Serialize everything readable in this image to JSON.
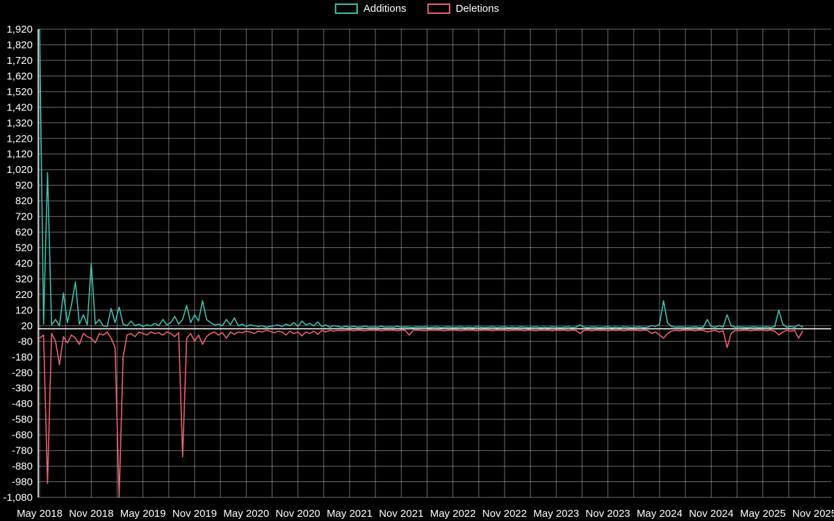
{
  "page": {
    "background": "#000000"
  },
  "legend": {
    "items": [
      {
        "id": "additions",
        "label": "Additions",
        "color": "#3fc1b2"
      },
      {
        "id": "deletions",
        "label": "Deletions",
        "color": "#f2606f"
      }
    ]
  },
  "chart_data": {
    "type": "line",
    "title": "",
    "xlabel": "",
    "ylabel": "",
    "grid": true,
    "legend_position": "top-center",
    "background_color": "#000000",
    "text_color": "#ffffff",
    "grid_color": "#ffffff",
    "y_max": 1920,
    "y_min": -1080,
    "y_grid_step": 100,
    "x_domain_max": 195,
    "x_tick_step": 13,
    "x_minor_grid_step": 6.5,
    "y_tick_labels": [
      "1,920",
      "1,820",
      "1,720",
      "1,620",
      "1,520",
      "1,420",
      "1,320",
      "1,220",
      "1,120",
      "1,020",
      "920",
      "820",
      "720",
      "620",
      "520",
      "420",
      "320",
      "220",
      "120",
      "20",
      "-80",
      "-180",
      "-280",
      "-380",
      "-480",
      "-580",
      "-680",
      "-780",
      "-880",
      "-980",
      "-1,080"
    ],
    "x_tick_labels": [
      "May 2018",
      "Nov 2018",
      "May 2019",
      "Nov 2019",
      "May 2020",
      "Nov 2020",
      "May 2021",
      "Nov 2021",
      "May 2022",
      "Nov 2022",
      "May 2023",
      "Nov 2023",
      "May 2024",
      "Nov 2024",
      "May 2025",
      "Nov 2025"
    ],
    "series": [
      {
        "name": "Additions",
        "color": "#3fc1b2",
        "values": [
          1920,
          30,
          1000,
          25,
          60,
          20,
          230,
          40,
          150,
          300,
          30,
          90,
          25,
          420,
          30,
          60,
          20,
          15,
          130,
          40,
          140,
          30,
          20,
          50,
          20,
          30,
          15,
          25,
          20,
          35,
          20,
          60,
          25,
          40,
          80,
          30,
          60,
          150,
          40,
          90,
          50,
          180,
          60,
          40,
          25,
          30,
          20,
          60,
          25,
          70,
          20,
          30,
          15,
          25,
          20,
          15,
          20,
          10,
          15,
          20,
          25,
          15,
          30,
          20,
          40,
          15,
          50,
          25,
          35,
          20,
          45,
          15,
          25,
          10,
          20,
          15,
          10,
          15,
          10,
          15,
          10,
          12,
          15,
          10,
          12,
          10,
          15,
          10,
          12,
          10,
          15,
          10,
          12,
          10,
          8,
          12,
          10,
          12,
          8,
          10,
          12,
          8,
          10,
          12,
          8,
          10,
          12,
          8,
          10,
          8,
          12,
          10,
          8,
          10,
          12,
          8,
          10,
          12,
          8,
          10,
          8,
          12,
          10,
          8,
          10,
          12,
          8,
          10,
          8,
          12,
          10,
          8,
          10,
          12,
          8,
          10,
          25,
          10,
          8,
          12,
          10,
          8,
          10,
          12,
          8,
          10,
          8,
          12,
          10,
          8,
          10,
          12,
          8,
          10,
          20,
          15,
          30,
          180,
          40,
          15,
          10,
          12,
          10,
          8,
          10,
          12,
          8,
          10,
          60,
          15,
          10,
          20,
          12,
          90,
          20,
          10,
          12,
          10,
          8,
          10,
          12,
          8,
          10,
          12,
          8,
          15,
          120,
          30,
          10,
          15,
          10,
          25,
          12
        ]
      },
      {
        "name": "Deletions",
        "color": "#f2606f",
        "values": [
          -60,
          -40,
          -990,
          -30,
          -80,
          -230,
          -50,
          -90,
          -40,
          -60,
          -100,
          -30,
          -50,
          -60,
          -90,
          -30,
          -40,
          -20,
          -60,
          -120,
          -1080,
          -180,
          -40,
          -30,
          -50,
          -20,
          -30,
          -40,
          -20,
          -30,
          -25,
          -40,
          -20,
          -30,
          -50,
          -25,
          -820,
          -60,
          -30,
          -80,
          -40,
          -100,
          -50,
          -30,
          -20,
          -40,
          -25,
          -60,
          -20,
          -35,
          -20,
          -25,
          -15,
          -20,
          -30,
          -15,
          -20,
          -10,
          -15,
          -25,
          -15,
          -20,
          -40,
          -15,
          -30,
          -20,
          -45,
          -20,
          -30,
          -15,
          -35,
          -10,
          -20,
          -10,
          -15,
          -10,
          -12,
          -10,
          -8,
          -12,
          -8,
          -10,
          -12,
          -8,
          -10,
          -8,
          -12,
          -8,
          -10,
          -8,
          -12,
          -8,
          -10,
          -40,
          -10,
          -8,
          -10,
          -12,
          -8,
          -10,
          -8,
          -10,
          -12,
          -8,
          -10,
          -8,
          -12,
          -8,
          -10,
          -8,
          -12,
          -8,
          -10,
          -8,
          -12,
          -8,
          -10,
          -8,
          -12,
          -8,
          -10,
          -8,
          -12,
          -8,
          -10,
          -12,
          -8,
          -10,
          -8,
          -12,
          -8,
          -10,
          -8,
          -12,
          -8,
          -10,
          -30,
          -10,
          -8,
          -12,
          -8,
          -10,
          -8,
          -12,
          -8,
          -10,
          -8,
          -12,
          -8,
          -10,
          -8,
          -12,
          -8,
          -10,
          -30,
          -20,
          -40,
          -60,
          -30,
          -15,
          -10,
          -12,
          -8,
          -10,
          -8,
          -12,
          -8,
          -10,
          -20,
          -15,
          -10,
          -20,
          -12,
          -120,
          -30,
          -10,
          -12,
          -8,
          -10,
          -12,
          -8,
          -10,
          -8,
          -12,
          -8,
          -15,
          -40,
          -20,
          -10,
          -15,
          -10,
          -60,
          -15
        ]
      }
    ]
  }
}
